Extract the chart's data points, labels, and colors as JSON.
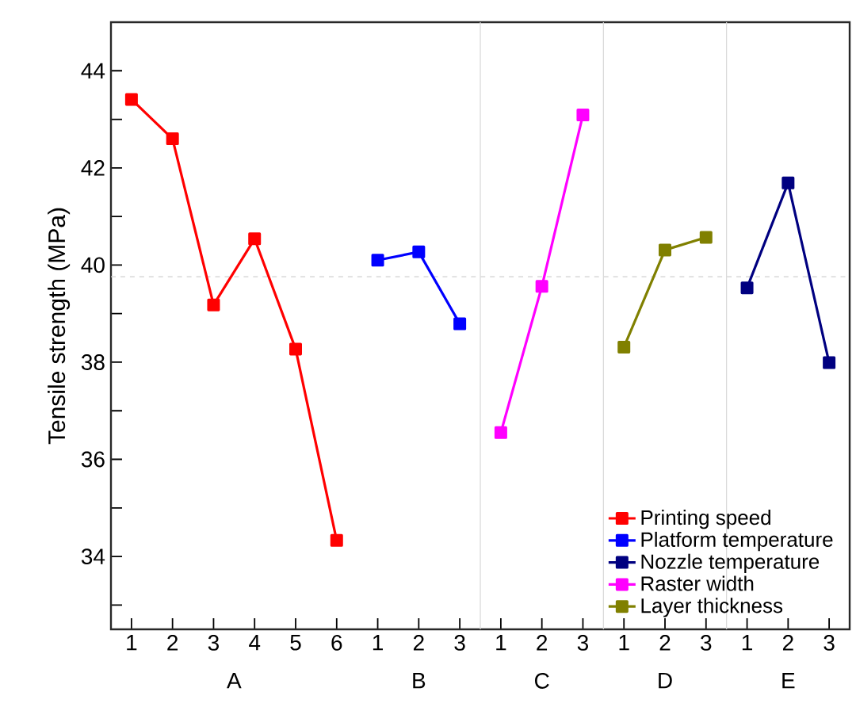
{
  "chart_data": {
    "type": "line",
    "ylabel": "Tensile strength (MPa)",
    "categories": [
      "1",
      "2",
      "3",
      "4",
      "5",
      "6",
      "1",
      "2",
      "3",
      "1",
      "2",
      "3",
      "1",
      "2",
      "3",
      "1",
      "2",
      "3"
    ],
    "series": [
      {
        "name": "Printing speed",
        "color": "#ff0000",
        "values": [
          43.41,
          42.6,
          39.18,
          40.54,
          38.27,
          34.33,
          null,
          null,
          null,
          null,
          null,
          null,
          null,
          null,
          null,
          null,
          null,
          null
        ]
      },
      {
        "name": "Platform temperature",
        "color": "#0000ff",
        "values": [
          null,
          null,
          null,
          null,
          null,
          null,
          40.1,
          40.27,
          38.79,
          null,
          null,
          null,
          null,
          null,
          null,
          null,
          null,
          null
        ]
      },
      {
        "name": "Nozzle temperature",
        "color": "#000080",
        "values": [
          null,
          null,
          null,
          null,
          null,
          null,
          null,
          null,
          null,
          null,
          null,
          null,
          null,
          null,
          null,
          39.53,
          41.69,
          37.99
        ]
      },
      {
        "name": "Raster width",
        "color": "#ff00ff",
        "values": [
          null,
          null,
          null,
          null,
          null,
          null,
          null,
          null,
          null,
          36.55,
          39.56,
          43.09,
          null,
          null,
          null,
          null,
          null,
          null
        ]
      },
      {
        "name": "Layer thickness",
        "color": "#808000",
        "values": [
          null,
          null,
          null,
          null,
          null,
          null,
          null,
          null,
          null,
          null,
          null,
          null,
          38.31,
          40.31,
          40.57,
          null,
          null,
          null
        ]
      }
    ],
    "annotations": [
      "A",
      "B",
      "C",
      "D",
      "E"
    ],
    "ylim": [
      32.5,
      45
    ],
    "yticks": [
      {
        "value": 33,
        "label": null
      },
      34,
      {
        "value": 35,
        "label": null
      },
      36,
      {
        "value": 37,
        "label": null
      },
      38,
      {
        "value": 39,
        "label": null
      },
      40,
      {
        "value": 41,
        "label": null
      },
      42,
      {
        "value": 43,
        "label": null
      },
      44
    ],
    "ref_lines": [
      {
        "axis": "y",
        "value": 39.76,
        "color": "#d0d0d0",
        "line_style": "dashed"
      }
    ],
    "legend": "bottom right",
    "marker": "square",
    "line_style": "solid",
    "grid": false
  }
}
